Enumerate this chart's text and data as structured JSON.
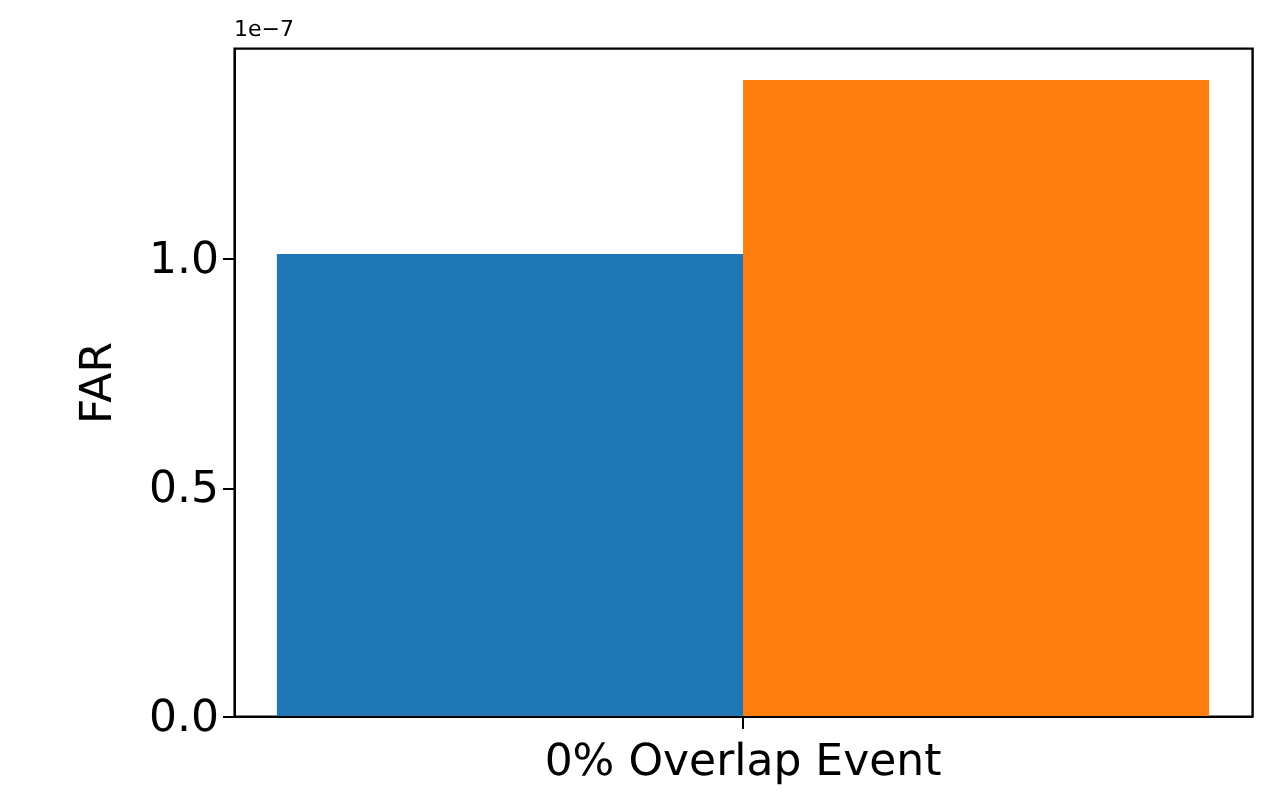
{
  "chart_data": {
    "type": "bar",
    "ylabel": "FAR",
    "categories": [
      "0% Overlap Event"
    ],
    "series": [
      {
        "color": "#1f77b4",
        "values": [
          1.01
        ]
      },
      {
        "color": "#ff7f0e",
        "values": [
          1.39
        ]
      }
    ],
    "ylim": [
      0,
      1.46
    ],
    "yticks": [
      {
        "value": 0,
        "label": "0.0"
      },
      {
        "value": 0.5,
        "label": "0.5"
      },
      {
        "value": 1,
        "label": "1.0"
      }
    ],
    "annotations": [
      "1e−7"
    ],
    "grid": false
  }
}
